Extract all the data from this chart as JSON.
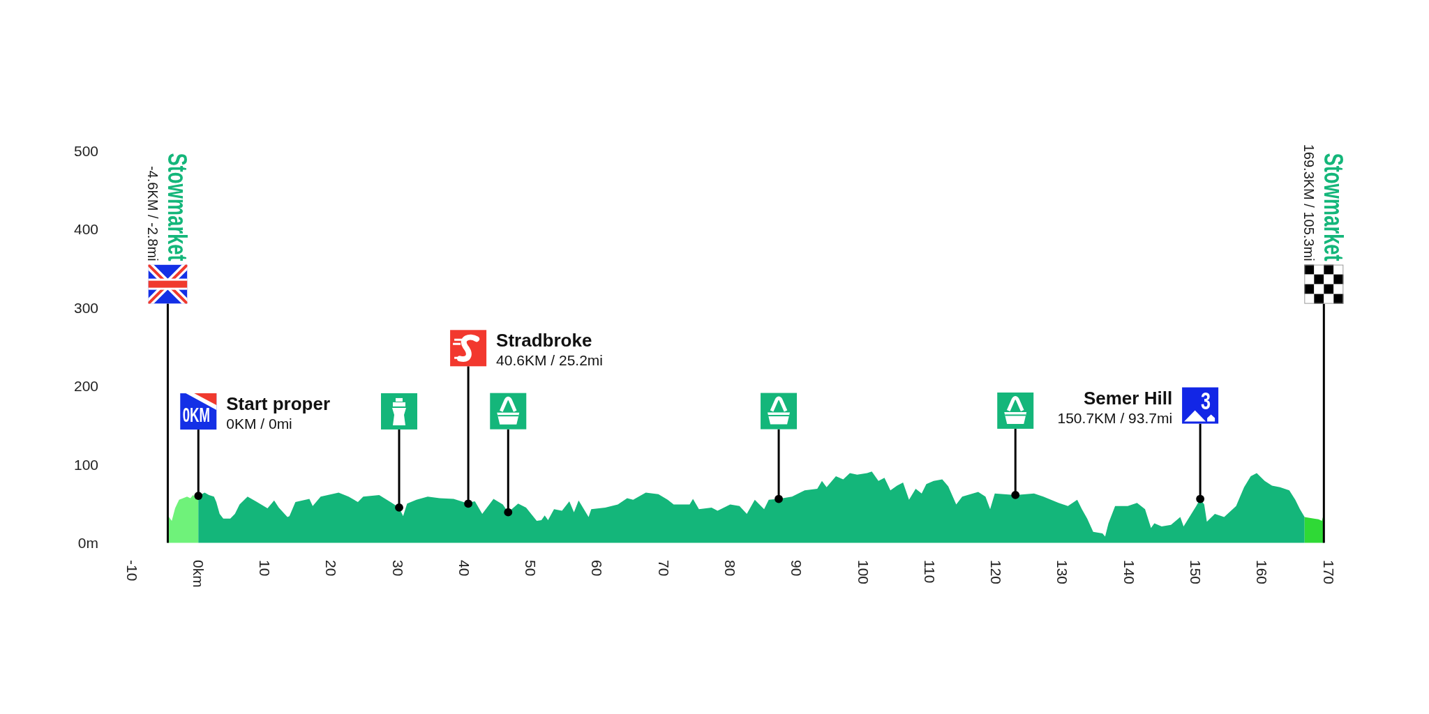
{
  "chart_data": {
    "type": "area",
    "xlim": [
      -10,
      170
    ],
    "ylim": [
      0,
      500
    ],
    "xticks": [
      -10,
      {
        "value": 0,
        "label": "0km"
      },
      10,
      20,
      30,
      40,
      50,
      60,
      70,
      80,
      90,
      100,
      110,
      120,
      130,
      140,
      150,
      160,
      170
    ],
    "yticks": [
      {
        "value": 0,
        "label": "0m"
      },
      100,
      200,
      300,
      400,
      500
    ],
    "series": [
      {
        "color": "#6ff27a",
        "x": [
          -4.6,
          -4.0,
          -3.5,
          -2.9,
          -2.3,
          -1.7,
          -1.2,
          -0.8,
          -0.3,
          0
        ],
        "values": [
          35,
          28,
          44,
          55,
          57,
          59,
          57,
          61,
          57,
          60
        ]
      },
      {
        "color": "#14b67a",
        "x": [
          0,
          0.95,
          1.6,
          2.35,
          2.7,
          3.2,
          3.75,
          4.8,
          5.5,
          6.2,
          7.4,
          8.65,
          10.4,
          11.4,
          12.1,
          13.4,
          13.7,
          14.6,
          16.7,
          17.2,
          18.4,
          21.1,
          22.6,
          24.0,
          24.8,
          27.2,
          28.9,
          30.2,
          30.8,
          31.4,
          32.8,
          34.5,
          36.3,
          38.4,
          40.3,
          41.6,
          42.7,
          44.4,
          45.8,
          46.6,
          48.1,
          49.3,
          50.9,
          51.6,
          52.1,
          52.6,
          53.5,
          54.7,
          55.8,
          56.5,
          57.2,
          58.7,
          59.1,
          61.2,
          63.1,
          64.5,
          65.4,
          67.3,
          69.2,
          70.6,
          71.5,
          73.9,
          74.4,
          75.3,
          77.2,
          78.1,
          80.0,
          81.4,
          82.5,
          83.7,
          85.1,
          85.8,
          87.3,
          89.3,
          91.2,
          93.1,
          93.8,
          94.5,
          95.9,
          97.0,
          98.0,
          99.1,
          100.6,
          101.3,
          102.3,
          103.2,
          104.1,
          105.1,
          106.0,
          106.9,
          107.9,
          108.8,
          109.5,
          110.6,
          111.9,
          112.8,
          114.0,
          114.9,
          117.3,
          118.4,
          119.1,
          119.8,
          122.9,
          125.7,
          127.1,
          129.4,
          130.8,
          132.2,
          132.9,
          133.7,
          134.6,
          136.0,
          136.4,
          136.9,
          137.9,
          139.8,
          141.2,
          142.4,
          143.3,
          143.8,
          144.9,
          146.3,
          147.7,
          148.2,
          150.1,
          150.7,
          151.3,
          151.7,
          152.9,
          154.3,
          156.1,
          157.3,
          158.3,
          159.2,
          160.4,
          161.5,
          162.7,
          164.1,
          165.0,
          165.7,
          166.4
        ],
        "values": [
          60,
          64,
          61,
          59,
          52,
          37,
          31,
          31,
          37,
          49,
          59,
          53,
          44,
          54,
          45,
          33,
          34,
          52,
          56,
          47,
          59,
          64,
          59,
          52,
          59,
          61,
          52,
          45,
          34,
          50,
          55,
          59,
          57,
          56,
          51,
          53,
          37,
          56,
          49,
          39,
          50,
          45,
          28,
          29,
          35,
          29,
          43,
          41,
          53,
          39,
          54,
          33,
          43,
          45,
          49,
          57,
          55,
          64,
          62,
          55,
          49,
          49,
          56,
          43,
          45,
          41,
          49,
          47,
          37,
          55,
          43,
          55,
          56,
          59,
          67,
          69,
          79,
          71,
          85,
          81,
          89,
          87,
          89,
          91,
          79,
          83,
          67,
          73,
          77,
          55,
          69,
          63,
          75,
          79,
          81,
          72,
          49,
          59,
          65,
          59,
          43,
          63,
          61,
          63,
          59,
          51,
          47,
          55,
          43,
          31,
          14,
          12,
          8,
          25,
          47,
          47,
          51,
          43,
          19,
          25,
          21,
          23,
          33,
          21,
          47,
          56,
          49,
          27,
          37,
          33,
          47,
          71,
          85,
          89,
          79,
          73,
          71,
          67,
          55,
          43,
          33
        ]
      },
      {
        "color": "#2fd936",
        "x": [
          166.4,
          167.0,
          167.8,
          168.5,
          169.0,
          169.3
        ],
        "values": [
          33,
          32,
          31,
          30,
          28,
          37
        ]
      },
      {
        "type": "scatter",
        "color": "#000000",
        "marker": "circle",
        "x": [
          0,
          30.2,
          40.6,
          46.6,
          87.3,
          122.9,
          150.7
        ],
        "values": [
          60,
          45,
          50,
          39,
          56,
          61,
          56
        ]
      }
    ],
    "ref_lines": [
      {
        "axis": "x",
        "value": -4.6,
        "label": "Stowmarket",
        "color": "#000000"
      },
      {
        "axis": "x",
        "value": 169.3,
        "label": "Stowmarket",
        "color": "#000000"
      }
    ],
    "annotations": [
      "-4.6KM / -2.8mi",
      {
        "text": "0KM",
        "x": 0,
        "y": 60
      },
      "Start proper",
      "0KM / 0mi",
      "Stradbroke",
      "40.6KM / 25.2mi",
      "Semer Hill",
      "150.7KM / 93.7mi",
      {
        "text": "3",
        "x": 150.7,
        "y": 56
      },
      "169.3KM / 105.3mi"
    ]
  }
}
